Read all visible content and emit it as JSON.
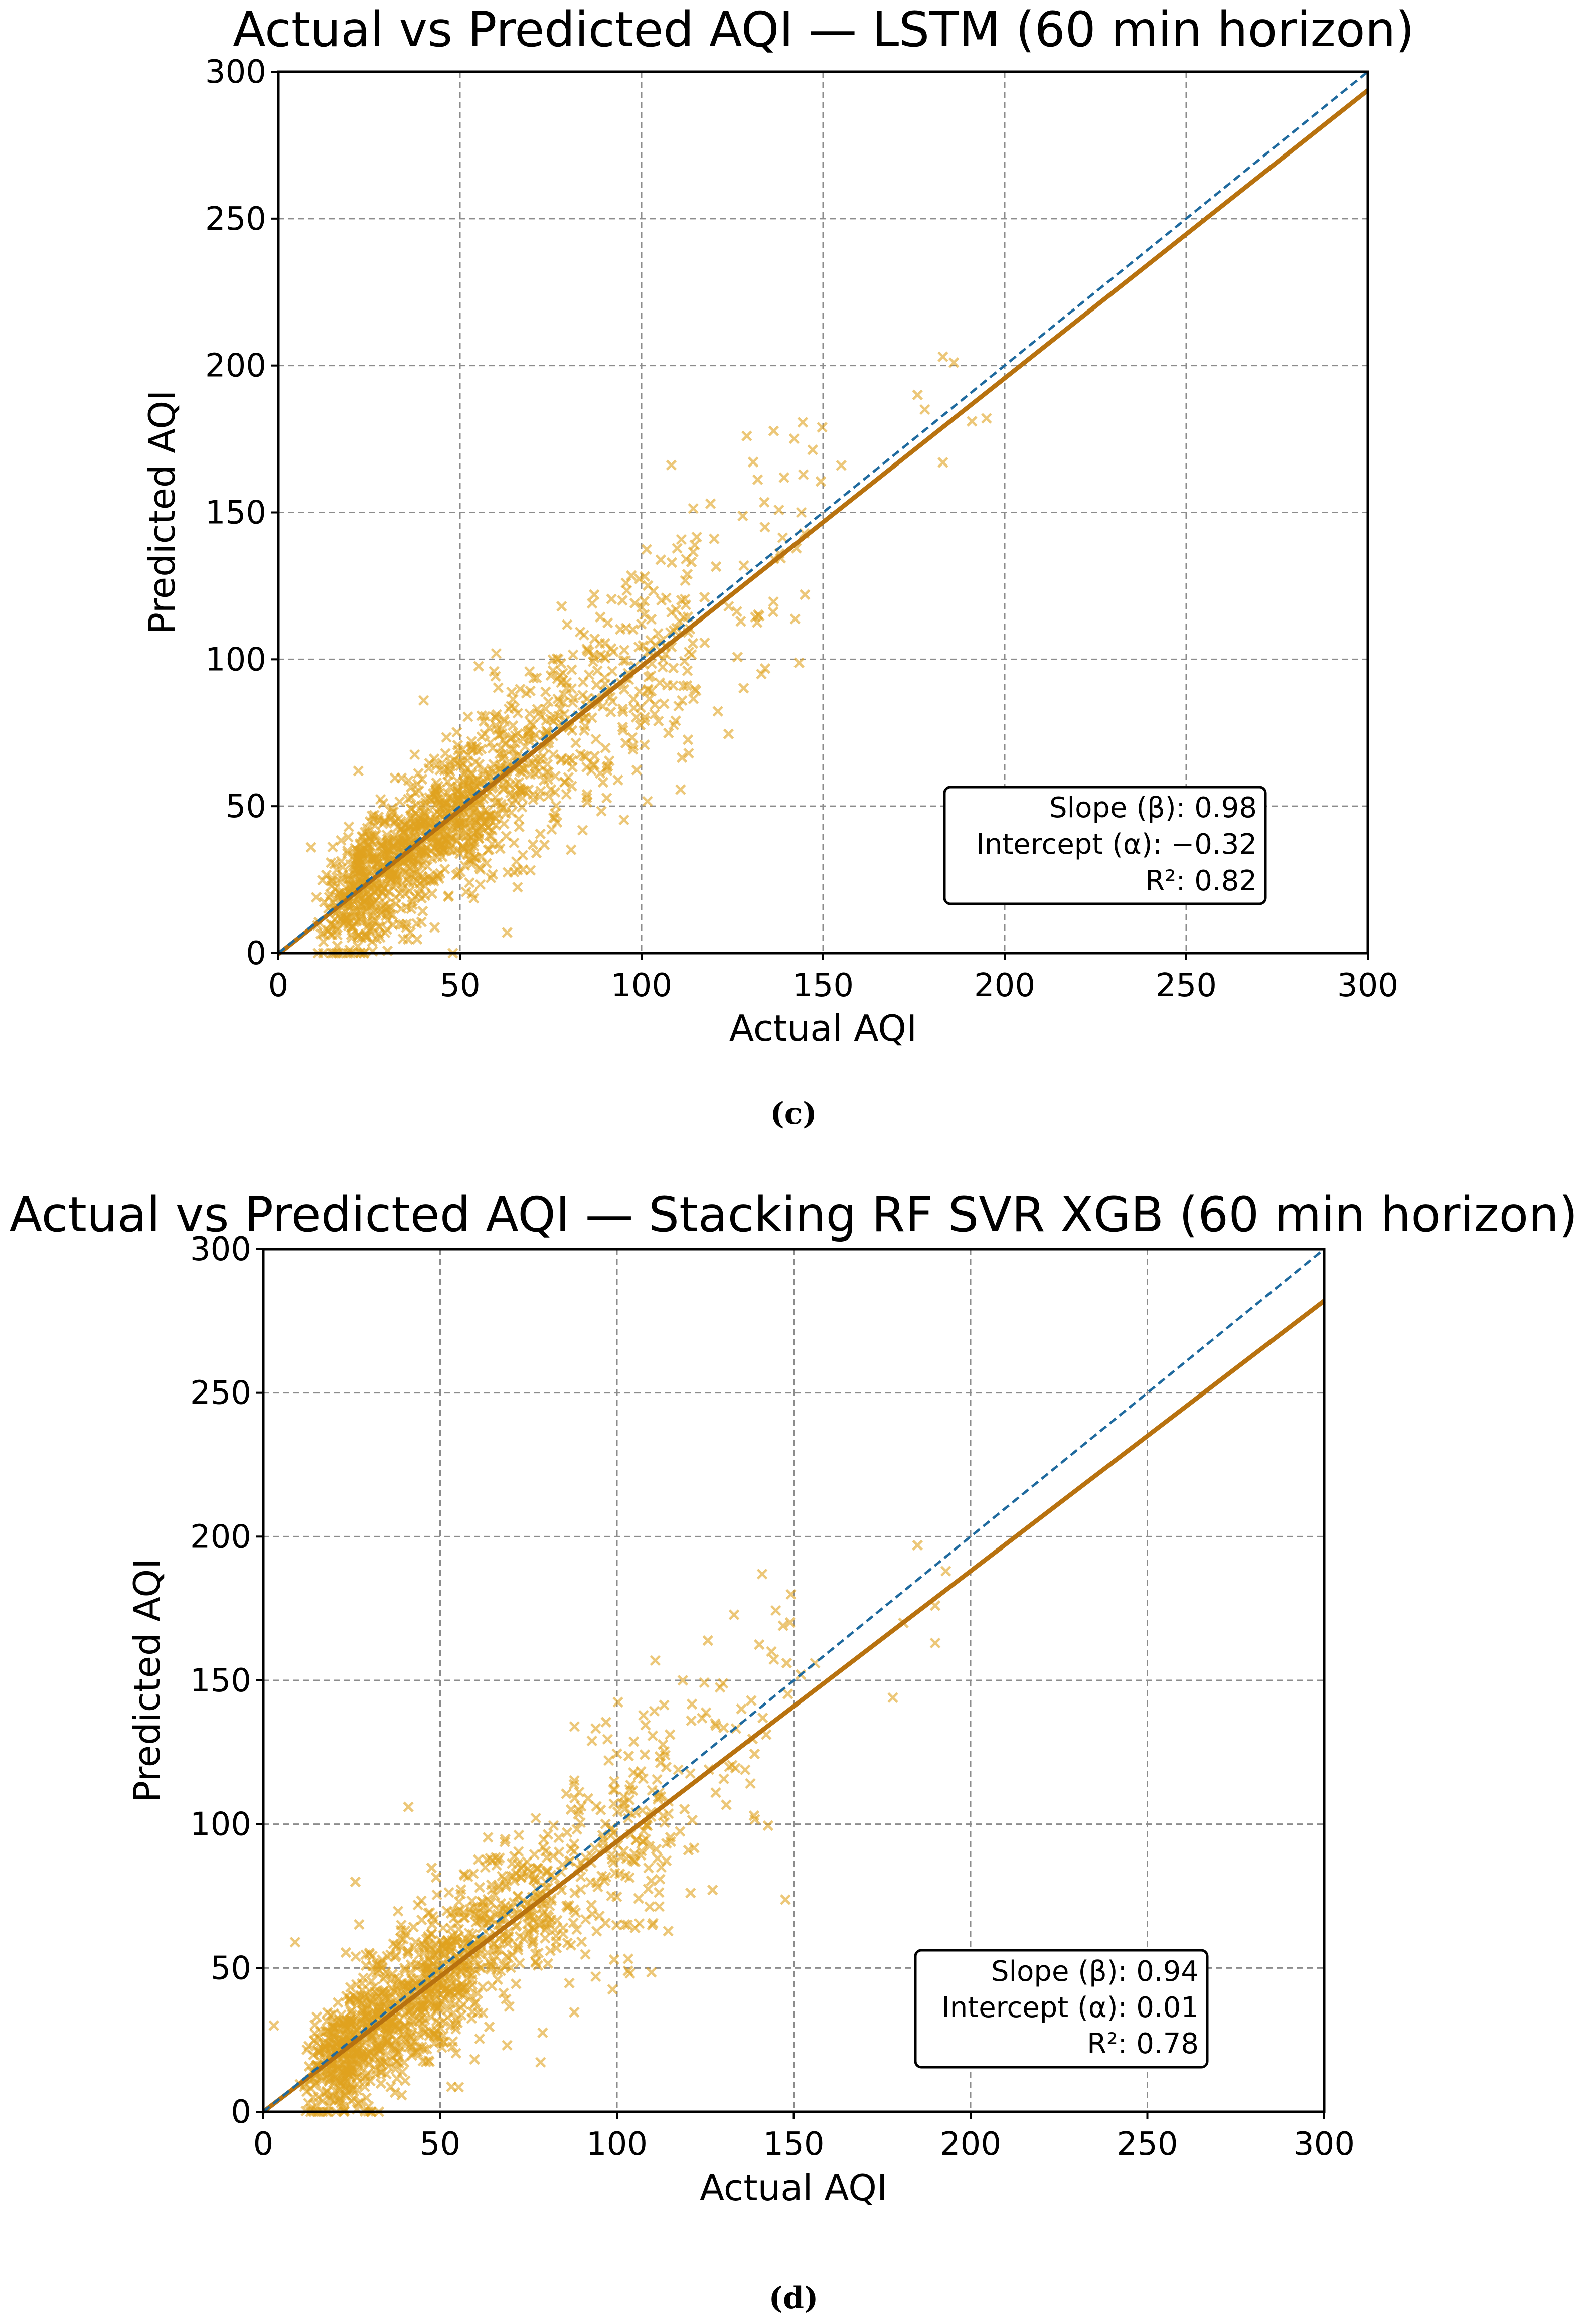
{
  "colors": {
    "points": "#e0a21e",
    "fit_line": "#b8720f",
    "identity_line": "#1f6a9e",
    "grid": "#8c8c8c"
  },
  "chart_data": [
    {
      "type": "scatter",
      "title": "Actual vs Predicted AQI — LSTM (60 min horizon)",
      "xlabel": "Actual AQI",
      "ylabel": "Predicted AQI",
      "xlim": [
        0,
        300
      ],
      "ylim": [
        0,
        300
      ],
      "xticks": [
        0,
        50,
        100,
        150,
        200,
        250,
        300
      ],
      "yticks": [
        0,
        50,
        100,
        150,
        200,
        250,
        300
      ],
      "grid": true,
      "marker": "x",
      "caption": "(c)",
      "fit": {
        "slope": 0.98,
        "intercept": -0.32,
        "r2": 0.82
      },
      "identity_line": {
        "slope": 1,
        "intercept": 0,
        "style": "dashed"
      },
      "stats_box": {
        "position": "bottom-right",
        "lines": [
          "Slope (β): 0.98",
          "Intercept (α): −0.32",
          "R²: 0.82"
        ]
      },
      "points_summary": {
        "count": 1400,
        "x_range": [
          0,
          195
        ],
        "dense_region": "0-80",
        "note": "points scatter around the fit line"
      },
      "highlight_points": [
        [
          183,
          203
        ],
        [
          186,
          201
        ],
        [
          176,
          190
        ],
        [
          195,
          182
        ],
        [
          191,
          181
        ],
        [
          178,
          185
        ],
        [
          129,
          176
        ],
        [
          155,
          166
        ],
        [
          183,
          167
        ],
        [
          119,
          153
        ],
        [
          144,
          150
        ],
        [
          134,
          145
        ],
        [
          120,
          141
        ],
        [
          138,
          136
        ],
        [
          124,
          118
        ],
        [
          106,
          100
        ],
        [
          133,
          95
        ],
        [
          113,
          68
        ],
        [
          60,
          102
        ],
        [
          40,
          86
        ],
        [
          87,
          122
        ],
        [
          78,
          118
        ],
        [
          9,
          36
        ],
        [
          22,
          62
        ],
        [
          63,
          7
        ]
      ]
    },
    {
      "type": "scatter",
      "title": "Actual vs Predicted AQI — Stacking RF SVR XGB (60 min horizon)",
      "xlabel": "Actual AQI",
      "ylabel": "Predicted AQI",
      "xlim": [
        0,
        300
      ],
      "ylim": [
        0,
        300
      ],
      "xticks": [
        0,
        50,
        100,
        150,
        200,
        250,
        300
      ],
      "yticks": [
        0,
        50,
        100,
        150,
        200,
        250,
        300
      ],
      "grid": true,
      "marker": "x",
      "caption": "(d)",
      "fit": {
        "slope": 0.94,
        "intercept": 0.01,
        "r2": 0.78
      },
      "identity_line": {
        "slope": 1,
        "intercept": 0,
        "style": "dashed"
      },
      "stats_box": {
        "position": "bottom-right",
        "lines": [
          "Slope (β): 0.94",
          "Intercept (α): 0.01",
          "R²: 0.78"
        ]
      },
      "points_summary": {
        "count": 1400,
        "x_range": [
          0,
          195
        ],
        "dense_region": "0-80",
        "note": "points scatter around the fit line"
      },
      "highlight_points": [
        [
          185,
          197
        ],
        [
          193,
          188
        ],
        [
          190,
          176
        ],
        [
          181,
          170
        ],
        [
          178,
          144
        ],
        [
          190,
          163
        ],
        [
          147,
          169
        ],
        [
          148,
          156
        ],
        [
          156,
          156
        ],
        [
          152,
          152
        ],
        [
          138,
          143
        ],
        [
          130,
          149
        ],
        [
          121,
          136
        ],
        [
          126,
          119
        ],
        [
          112,
          111
        ],
        [
          88,
          134
        ],
        [
          99,
          97
        ],
        [
          103,
          65
        ],
        [
          76,
          64
        ],
        [
          94,
          47
        ],
        [
          41,
          106
        ],
        [
          26,
          80
        ],
        [
          9,
          59
        ],
        [
          3,
          30
        ],
        [
          60,
          38
        ]
      ]
    }
  ]
}
